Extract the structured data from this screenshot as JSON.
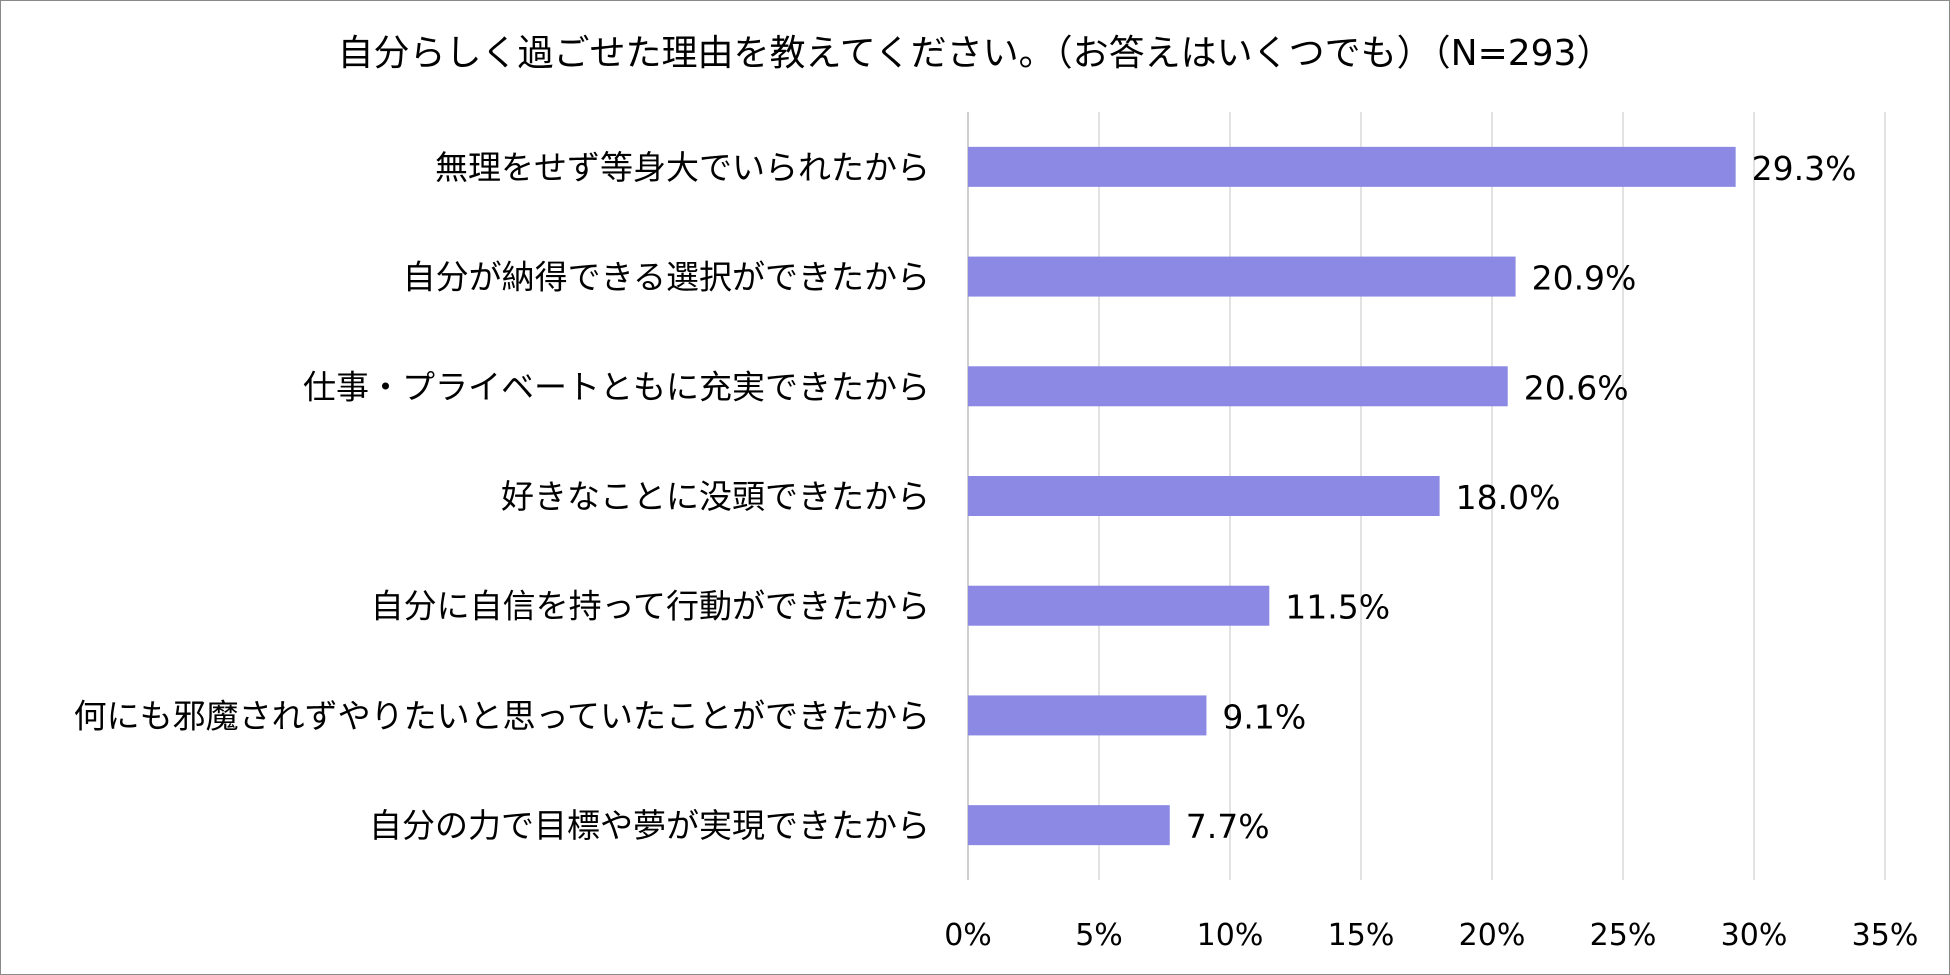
{
  "chart_data": {
    "type": "bar",
    "orientation": "horizontal",
    "title": "自分らしく過ごせた理由を教えてください。（お答えはいくつでも）（N=293）",
    "categories": [
      "無理をせず等身大でいられたから",
      "自分が納得できる選択ができたから",
      "仕事・プライベートともに充実できたから",
      "好きなことに没頭できたから",
      "自分に自信を持って行動ができたから",
      "何にも邪魔されずやりたいと思っていたことができたから",
      "自分の力で目標や夢が実現できたから"
    ],
    "values": [
      29.3,
      20.9,
      20.6,
      18.0,
      11.5,
      9.1,
      7.7
    ],
    "value_labels": [
      "29.3%",
      "20.9%",
      "20.6%",
      "18.0%",
      "11.5%",
      "9.1%",
      "7.7%"
    ],
    "xlim": [
      0,
      35
    ],
    "ticks": [
      0,
      5,
      10,
      15,
      20,
      25,
      30,
      35
    ],
    "tick_labels": [
      "0%",
      "5%",
      "10%",
      "15%",
      "20%",
      "25%",
      "30%",
      "35%"
    ],
    "xlabel": "",
    "ylabel": "",
    "grid": true,
    "legend": false,
    "colors": {
      "bar": "#8b89e3",
      "grid": "#d9d9d9",
      "text": "#000000",
      "border": "#8a8a8a"
    }
  }
}
